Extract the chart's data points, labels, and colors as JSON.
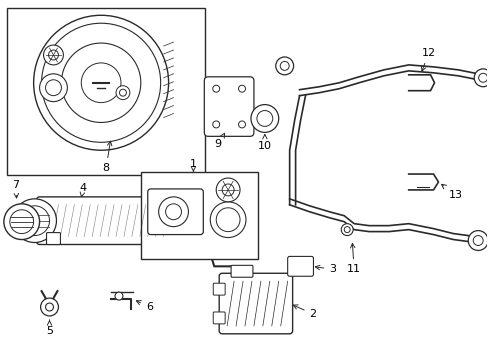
{
  "bg_color": "#ffffff",
  "line_color": "#2a2a2a",
  "label_color": "#000000",
  "figsize": [
    4.89,
    3.6
  ],
  "dpi": 100
}
